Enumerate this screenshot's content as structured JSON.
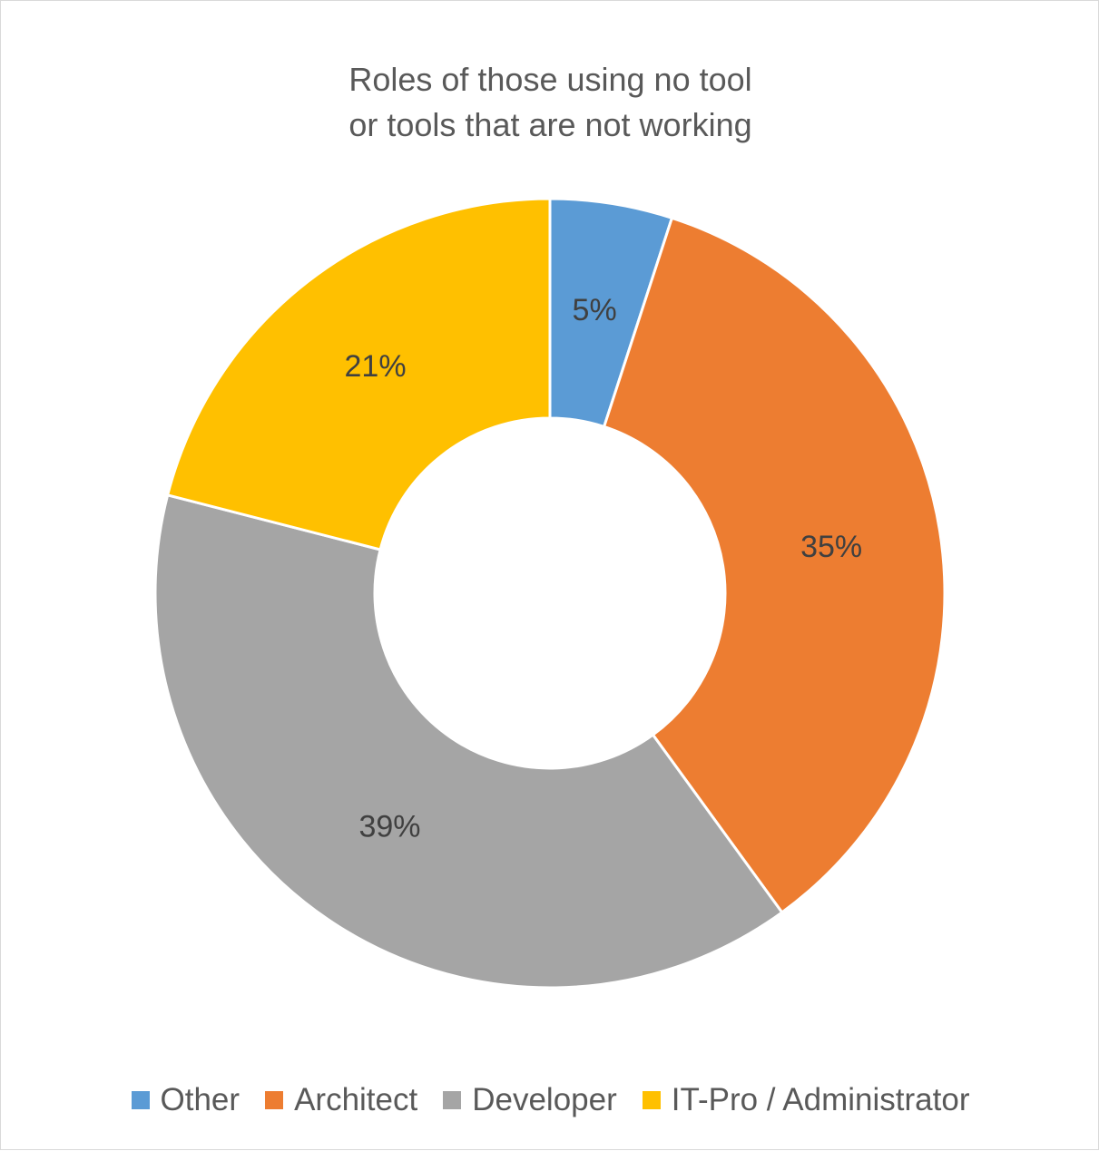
{
  "chart_data": {
    "type": "pie",
    "title_lines": [
      "Roles of those using no tool",
      "or tools that are not working"
    ],
    "categories": [
      "Other",
      "Architect",
      "Developer",
      "IT-Pro / Administrator"
    ],
    "values": [
      5,
      35,
      39,
      21
    ],
    "data_labels": [
      "5%",
      "35%",
      "39%",
      "21%"
    ],
    "colors": [
      "#5b9bd5",
      "#ed7d31",
      "#a5a5a5",
      "#ffc000"
    ],
    "legend_position": "bottom",
    "style": "doughnut"
  }
}
